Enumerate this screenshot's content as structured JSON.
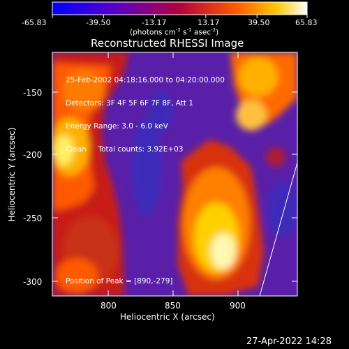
{
  "colorbar": {
    "ticks": [
      "-65.83",
      "-39.50",
      "-13.17",
      "13.17",
      "39.50",
      "65.83"
    ],
    "units_prefix": "(photons cm",
    "units_exp1": "-2",
    "units_mid": " s",
    "units_exp2": "-1",
    "units_mid2": " asec",
    "units_exp3": "-2",
    "units_suffix": ")",
    "colors": [
      "#0000ff",
      "#5a00c8",
      "#b4003c",
      "#ff5a00",
      "#ffc800",
      "#ffffff"
    ]
  },
  "plot": {
    "title": "Reconstructed RHESSI Image",
    "info_lines": [
      "25-Feb-2002 04:18:16.000 to 04:20:00.000",
      "Detectors: 3F 4F 5F 6F 7F 8F, Att 1",
      "Energy Range: 3.0 - 6.0 keV",
      "Clean     Total counts: 3.92E+03"
    ],
    "peak_text": "Position of Peak = [890,-279]",
    "xlabel": "Heliocentric X (arcsec)",
    "ylabel": "Heliocentric Y (arcsec)",
    "x_ticks": [
      "800",
      "850",
      "900"
    ],
    "y_ticks": [
      "-150",
      "-200",
      "-250",
      "-300"
    ]
  },
  "footer": {
    "timestamp": "27-Apr-2022 14:28"
  }
}
